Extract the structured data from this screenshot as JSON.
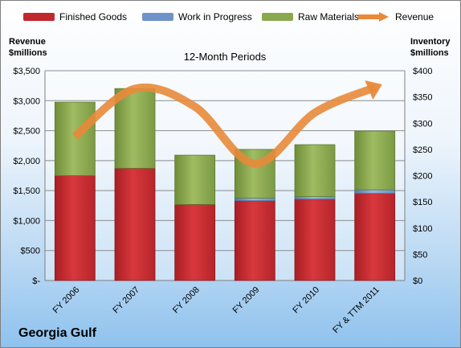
{
  "company": "Georgia Gulf",
  "colors": {
    "finished": "#c0282d",
    "wip": "#6f93c8",
    "raw": "#8aa84e",
    "revenue": "#e8893a"
  },
  "chart_data": {
    "type": "bar",
    "subtitle": "12-Month Periods",
    "categories": [
      "FY 2006",
      "FY 2007",
      "FY 2008",
      "FY 2009",
      "FY 2010",
      "FY & TTM 2011"
    ],
    "left_axis": {
      "title_line1": "Revenue",
      "title_line2": "$millions",
      "range": [
        0,
        3500
      ],
      "ticks": [
        0,
        500,
        1000,
        1500,
        2000,
        2500,
        3000,
        3500
      ],
      "tick_labels": [
        "$-",
        "$500",
        "$1,000",
        "$1,500",
        "$2,000",
        "$2,500",
        "$3,000",
        "$3,500"
      ]
    },
    "right_axis": {
      "title_line1": "Inventory",
      "title_line2": "$millions",
      "range": [
        0,
        400
      ],
      "ticks": [
        0,
        50,
        100,
        150,
        200,
        250,
        300,
        350,
        400
      ],
      "tick_labels": [
        "$0",
        "$50",
        "$100",
        "$150",
        "$200",
        "$250",
        "$300",
        "$350",
        "$400"
      ]
    },
    "grid": true,
    "legend_position": "top",
    "stacked_series_axis": "right",
    "series": [
      {
        "name": "Finished Goods",
        "kind": "bar",
        "color": "#c0282d",
        "values": [
          200,
          214,
          145,
          152,
          155,
          166
        ]
      },
      {
        "name": "Work in Progress",
        "kind": "bar",
        "color": "#6f93c8",
        "values": [
          0,
          0,
          0,
          5,
          5,
          7
        ]
      },
      {
        "name": "Raw Materials",
        "kind": "bar",
        "color": "#8aa84e",
        "values": [
          140,
          152,
          94,
          93,
          99,
          112
        ]
      },
      {
        "name": "Revenue",
        "kind": "line",
        "axis": "left",
        "color": "#e8893a",
        "values": [
          2400,
          3200,
          2900,
          1950,
          2800,
          3220
        ]
      }
    ]
  }
}
